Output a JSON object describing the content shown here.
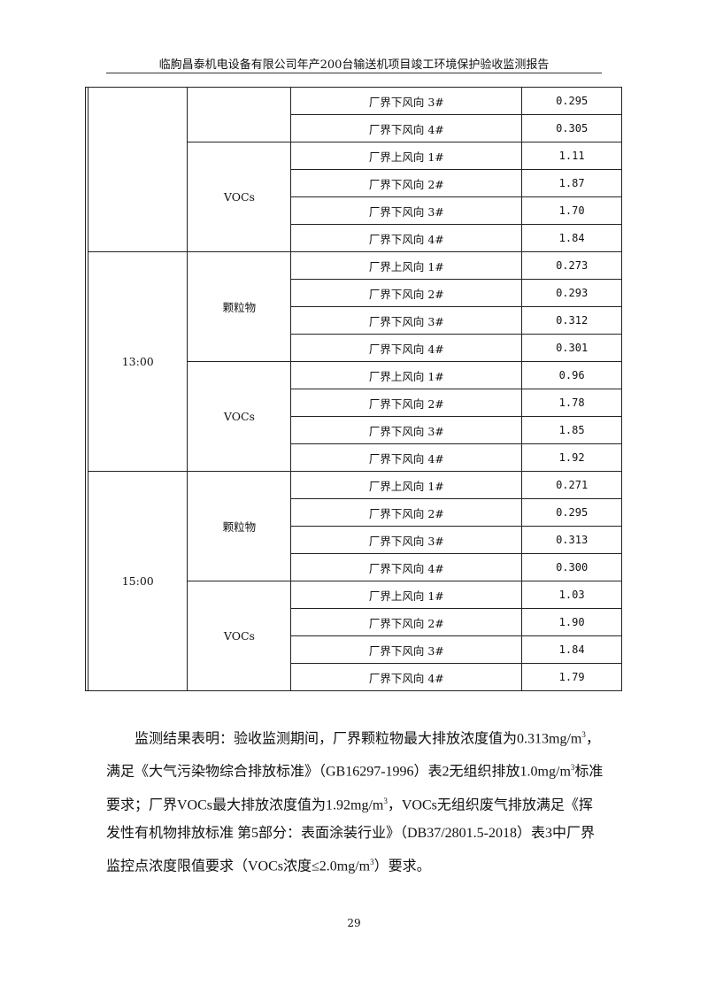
{
  "header": {
    "title": "临朐昌泰机电设备有限公司年产200台输送机项目竣工环境保护验收监测报告"
  },
  "table": {
    "groups": [
      {
        "time": "",
        "pollutants": [
          {
            "name": "",
            "points": [
              [
                "厂界下风向 3#",
                "0.295"
              ],
              [
                "厂界下风向 4#",
                "0.305"
              ]
            ]
          },
          {
            "name": "VOCs",
            "points": [
              [
                "厂界上风向 1#",
                "1.11"
              ],
              [
                "厂界下风向 2#",
                "1.87"
              ],
              [
                "厂界下风向 3#",
                "1.70"
              ],
              [
                "厂界下风向 4#",
                "1.84"
              ]
            ]
          }
        ]
      },
      {
        "time": "13:00",
        "pollutants": [
          {
            "name": "颗粒物",
            "points": [
              [
                "厂界上风向 1#",
                "0.273"
              ],
              [
                "厂界下风向 2#",
                "0.293"
              ],
              [
                "厂界下风向 3#",
                "0.312"
              ],
              [
                "厂界下风向 4#",
                "0.301"
              ]
            ]
          },
          {
            "name": "VOCs",
            "points": [
              [
                "厂界上风向 1#",
                "0.96"
              ],
              [
                "厂界下风向 2#",
                "1.78"
              ],
              [
                "厂界下风向 3#",
                "1.85"
              ],
              [
                "厂界下风向 4#",
                "1.92"
              ]
            ]
          }
        ]
      },
      {
        "time": "15:00",
        "pollutants": [
          {
            "name": "颗粒物",
            "points": [
              [
                "厂界上风向 1#",
                "0.271"
              ],
              [
                "厂界下风向 2#",
                "0.295"
              ],
              [
                "厂界下风向 3#",
                "0.313"
              ],
              [
                "厂界下风向 4#",
                "0.300"
              ]
            ]
          },
          {
            "name": "VOCs",
            "points": [
              [
                "厂界上风向 1#",
                "1.03"
              ],
              [
                "厂界下风向 2#",
                "1.90"
              ],
              [
                "厂界下风向 3#",
                "1.84"
              ],
              [
                "厂界下风向 4#",
                "1.79"
              ]
            ]
          }
        ]
      }
    ]
  },
  "paragraph": [
    "监测结果表明：验收监测期间，厂界颗粒物最大排放浓度值为0.313mg/m",
    "3",
    "，满足《大气污染物综合排放标准》（GB16297-1996）表2无组织排放1.0mg/m",
    "3",
    "标准要求；厂界VOCs最大排放浓度值为1.92mg/m",
    "3",
    "，VOCs无组织废气排放满足《挥发性有机物排放标准 第5部分：表面涂装行业》（DB37/2801.5-2018）表3中厂界监控点浓度限值要求（VOCs浓度≤2.0mg/m",
    "3",
    "）要求。"
  ],
  "page_number": "29"
}
